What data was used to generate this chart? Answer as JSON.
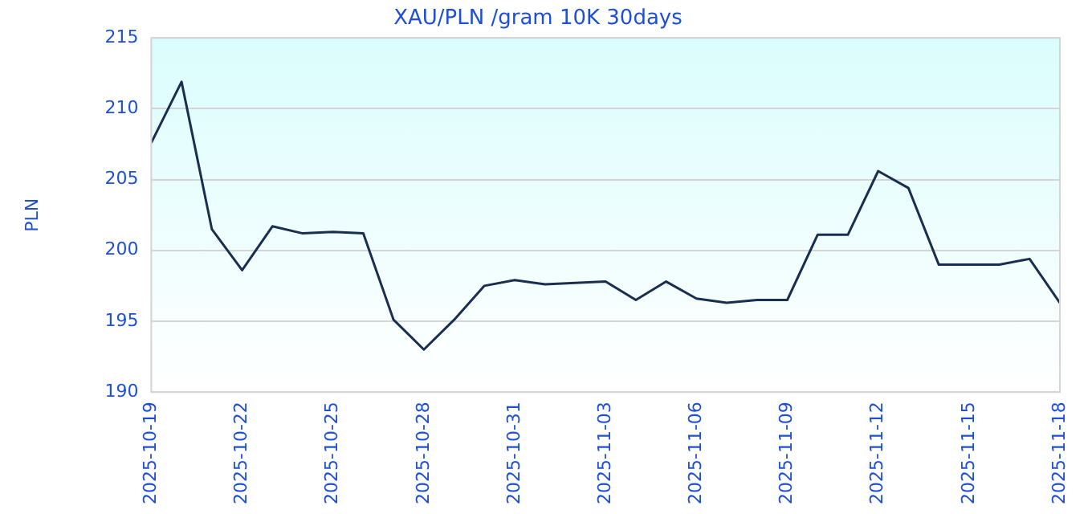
{
  "chart_data": {
    "type": "line",
    "title": "XAU/PLN /gram 10K 30days",
    "ylabel": "PLN",
    "x": [
      "2025-10-19",
      "2025-10-20",
      "2025-10-21",
      "2025-10-22",
      "2025-10-23",
      "2025-10-24",
      "2025-10-25",
      "2025-10-26",
      "2025-10-27",
      "2025-10-28",
      "2025-10-29",
      "2025-10-30",
      "2025-10-31",
      "2025-11-01",
      "2025-11-02",
      "2025-11-03",
      "2025-11-04",
      "2025-11-05",
      "2025-11-06",
      "2025-11-07",
      "2025-11-08",
      "2025-11-09",
      "2025-11-10",
      "2025-11-11",
      "2025-11-12",
      "2025-11-13",
      "2025-11-14",
      "2025-11-15",
      "2025-11-16",
      "2025-11-17",
      "2025-11-18"
    ],
    "series": [
      {
        "color": "#1a2e4f",
        "values": [
          207.6,
          211.9,
          201.5,
          198.6,
          201.7,
          201.2,
          201.3,
          201.2,
          195.1,
          193.0,
          195.1,
          197.5,
          197.9,
          197.6,
          197.7,
          197.8,
          196.5,
          197.8,
          196.6,
          196.3,
          196.5,
          196.5,
          201.1,
          201.1,
          205.6,
          204.4,
          199.0,
          199.0,
          199.0,
          199.4,
          196.3
        ]
      }
    ],
    "xlim": [
      "2025-10-19",
      "2025-11-18"
    ],
    "xticks": [
      "2025-10-19",
      "2025-10-22",
      "2025-10-25",
      "2025-10-28",
      "2025-10-31",
      "2025-11-03",
      "2025-11-06",
      "2025-11-09",
      "2025-11-12",
      "2025-11-15",
      "2025-11-18"
    ],
    "ylim": [
      190,
      215
    ],
    "yticks": [
      190,
      195,
      200,
      205,
      210,
      215
    ],
    "grid": "y",
    "legend": false,
    "marker": "none",
    "line_style": "solid"
  }
}
